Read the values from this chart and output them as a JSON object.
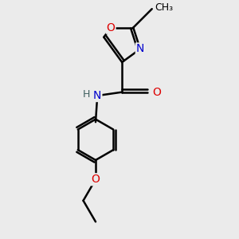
{
  "bg_color": "#ebebeb",
  "bond_color": "#000000",
  "bond_width": 1.8,
  "atom_colors": {
    "O": "#dd0000",
    "N": "#0000cc",
    "C": "#000000",
    "H": "#406060"
  },
  "font_size": 10,
  "font_size_small": 9
}
